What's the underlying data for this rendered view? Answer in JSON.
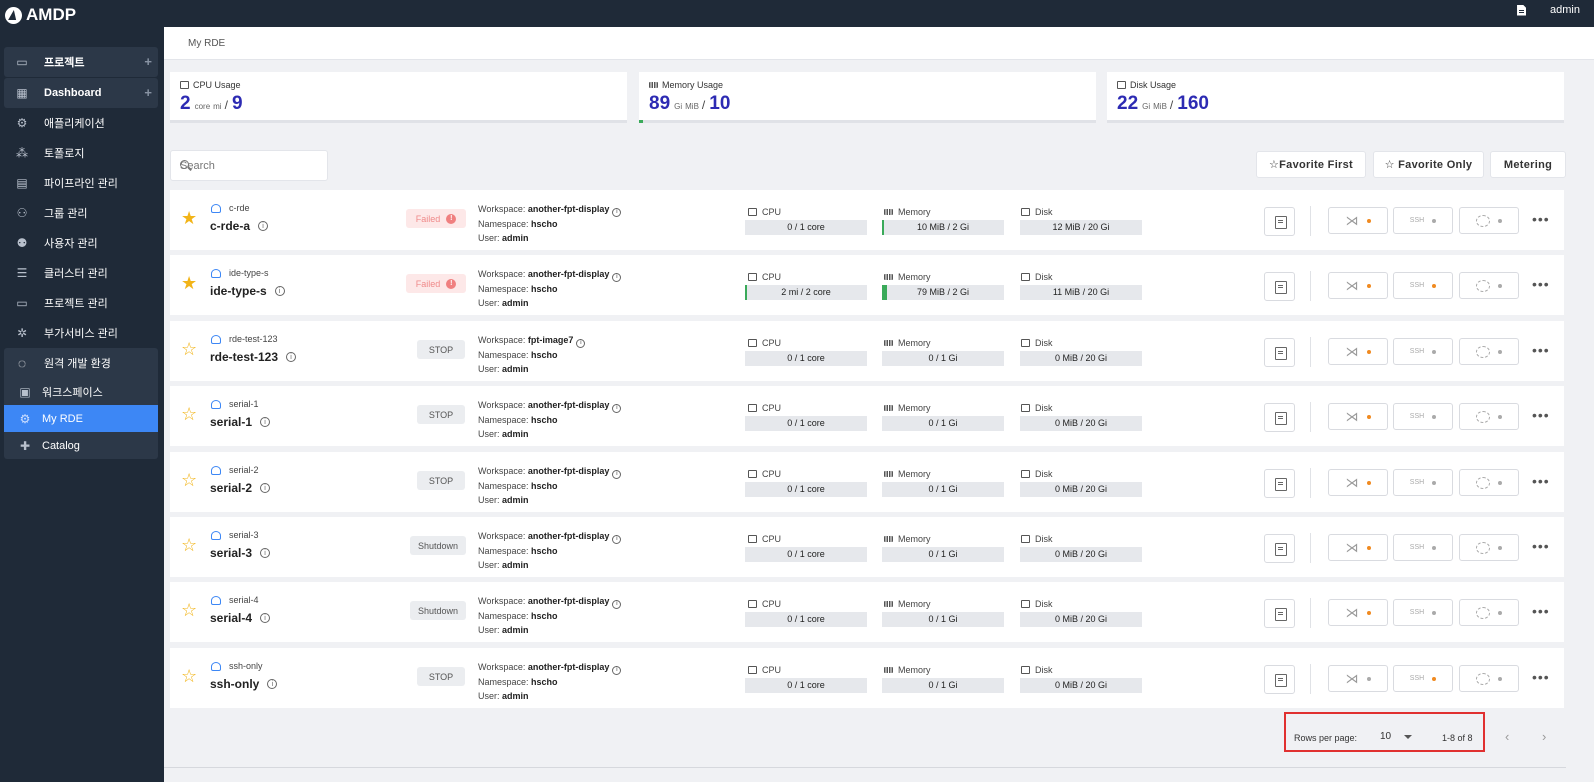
{
  "app": {
    "title": "AMDP"
  },
  "header": {
    "user": "admin"
  },
  "sidebar": {
    "items": [
      {
        "label": "프로젝트",
        "icon": "folder-icon",
        "plus": "+"
      },
      {
        "label": "Dashboard",
        "icon": "dashboard-icon",
        "plus": "+"
      },
      {
        "label": "애플리케이션",
        "icon": "gear-icon"
      },
      {
        "label": "토폴로지",
        "icon": "topology-icon"
      },
      {
        "label": "파이프라인 관리",
        "icon": "pipeline-icon"
      },
      {
        "label": "그룹 관리",
        "icon": "group-icon"
      },
      {
        "label": "사용자 관리",
        "icon": "user-gear-icon"
      },
      {
        "label": "클러스터 관리",
        "icon": "cluster-icon"
      },
      {
        "label": "프로젝트 관리",
        "icon": "folder-icon"
      },
      {
        "label": "부가서비스 관리",
        "icon": "addon-icon"
      },
      {
        "label": "원격 개발 환경",
        "icon": "loading-icon"
      }
    ],
    "sub_items": [
      {
        "label": "워크스페이스",
        "icon": "desktop-icon"
      },
      {
        "label": "My RDE",
        "icon": "gear-icon"
      },
      {
        "label": "Catalog",
        "icon": "puzzle-icon"
      }
    ]
  },
  "breadcrumb": "My RDE",
  "usage": {
    "cpu": {
      "label": "CPU Usage",
      "used": "2",
      "unit1": "core",
      "unit2": "mi",
      "slash": "/",
      "total": "9",
      "used_fraction": 0
    },
    "memory": {
      "label": "Memory Usage",
      "used": "89",
      "unit1": "Gi",
      "unit2": "MiB",
      "slash": "/",
      "total": "10",
      "used_fraction": 0.008
    },
    "disk": {
      "label": "Disk Usage",
      "used": "22",
      "unit1": "Gi",
      "unit2": "MiB",
      "slash": "/",
      "total": "160",
      "used_fraction": 0
    }
  },
  "search": {
    "placeholder": "Search"
  },
  "toolbar": {
    "favorite_first": "☆Favorite First",
    "favorite_only": "☆ Favorite Only",
    "metering": "Metering"
  },
  "labels": {
    "workspace": "Workspace:",
    "namespace": "Namespace:",
    "user": "User:",
    "cpu": "CPU",
    "memory": "Memory",
    "disk": "Disk",
    "ssh": "SSH",
    "more": "•••"
  },
  "rows": [
    {
      "short": "c-rde",
      "name": "c-rde-a",
      "favorite": true,
      "status": "Failed",
      "status_type": "failed",
      "workspace": "another-fpt-display",
      "namespace": "hscho",
      "user": "admin",
      "cpu": "0 / 1 core",
      "cpu_fill": 0.0,
      "memory": "10 MiB / 2 Gi",
      "memory_fill": 0.01,
      "disk": "12 MiB / 20 Gi",
      "disk_fill": 0,
      "vscode_dot": "orange",
      "ssh_dot": "gray",
      "jupyter_dot": "gray"
    },
    {
      "short": "ide-type-s",
      "name": "ide-type-s",
      "favorite": true,
      "status": "Failed",
      "status_type": "failed",
      "workspace": "another-fpt-display",
      "namespace": "hscho",
      "user": "admin",
      "cpu": "2 mi / 2 core",
      "cpu_fill": 0.005,
      "memory": "79 MiB / 2 Gi",
      "memory_fill": 0.04,
      "disk": "11 MiB / 20 Gi",
      "disk_fill": 0,
      "vscode_dot": "orange",
      "ssh_dot": "orange",
      "jupyter_dot": "gray"
    },
    {
      "short": "rde-test-123",
      "name": "rde-test-123",
      "favorite": false,
      "status": "STOP",
      "status_type": "stop",
      "workspace": "fpt-image7",
      "namespace": "hscho",
      "user": "admin",
      "cpu": "0 / 1 core",
      "cpu_fill": 0,
      "memory": "0 / 1 Gi",
      "memory_fill": 0,
      "disk": "0 MiB / 20 Gi",
      "disk_fill": 0,
      "vscode_dot": "orange",
      "ssh_dot": "gray",
      "jupyter_dot": "gray"
    },
    {
      "short": "serial-1",
      "name": "serial-1",
      "favorite": false,
      "status": "STOP",
      "status_type": "stop",
      "workspace": "another-fpt-display",
      "namespace": "hscho",
      "user": "admin",
      "cpu": "0 / 1 core",
      "cpu_fill": 0,
      "memory": "0 / 1 Gi",
      "memory_fill": 0,
      "disk": "0 MiB / 20 Gi",
      "disk_fill": 0,
      "vscode_dot": "orange",
      "ssh_dot": "gray",
      "jupyter_dot": "gray"
    },
    {
      "short": "serial-2",
      "name": "serial-2",
      "favorite": false,
      "status": "STOP",
      "status_type": "stop",
      "workspace": "another-fpt-display",
      "namespace": "hscho",
      "user": "admin",
      "cpu": "0 / 1 core",
      "cpu_fill": 0,
      "memory": "0 / 1 Gi",
      "memory_fill": 0,
      "disk": "0 MiB / 20 Gi",
      "disk_fill": 0,
      "vscode_dot": "orange",
      "ssh_dot": "gray",
      "jupyter_dot": "gray"
    },
    {
      "short": "serial-3",
      "name": "serial-3",
      "favorite": false,
      "status": "Shutdown",
      "status_type": "shutdown",
      "workspace": "another-fpt-display",
      "namespace": "hscho",
      "user": "admin",
      "cpu": "0 / 1 core",
      "cpu_fill": 0,
      "memory": "0 / 1 Gi",
      "memory_fill": 0,
      "disk": "0 MiB / 20 Gi",
      "disk_fill": 0,
      "vscode_dot": "orange",
      "ssh_dot": "gray",
      "jupyter_dot": "gray"
    },
    {
      "short": "serial-4",
      "name": "serial-4",
      "favorite": false,
      "status": "Shutdown",
      "status_type": "shutdown",
      "workspace": "another-fpt-display",
      "namespace": "hscho",
      "user": "admin",
      "cpu": "0 / 1 core",
      "cpu_fill": 0,
      "memory": "0 / 1 Gi",
      "memory_fill": 0,
      "disk": "0 MiB / 20 Gi",
      "disk_fill": 0,
      "vscode_dot": "orange",
      "ssh_dot": "gray",
      "jupyter_dot": "gray"
    },
    {
      "short": "ssh-only",
      "name": "ssh-only",
      "favorite": false,
      "status": "STOP",
      "status_type": "stop",
      "workspace": "another-fpt-display",
      "namespace": "hscho",
      "user": "admin",
      "cpu": "0 / 1 core",
      "cpu_fill": 0,
      "memory": "0 / 1 Gi",
      "memory_fill": 0,
      "disk": "0 MiB / 20 Gi",
      "disk_fill": 0,
      "vscode_dot": "gray",
      "ssh_dot": "orange",
      "jupyter_dot": "gray"
    }
  ],
  "pagination": {
    "rows_per_page_label": "Rows per page:",
    "rows_per_page_value": "10",
    "range": "1-8 of 8",
    "prev": "‹",
    "next": "›"
  },
  "colors": {
    "accent": "#3d87f5",
    "usage_value": "#2d2bb3",
    "star": "#f2b418",
    "sidebar_bg": "#1f2a38"
  }
}
